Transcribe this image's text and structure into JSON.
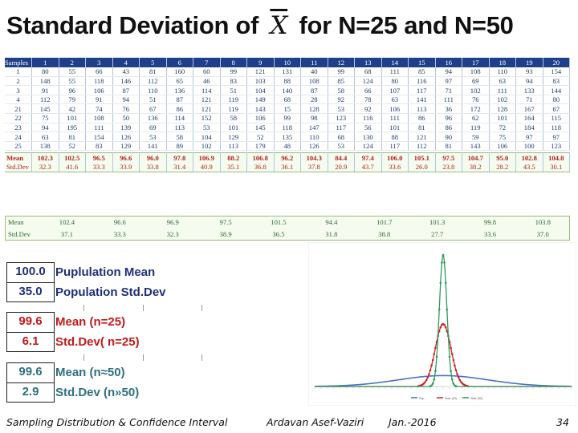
{
  "title": {
    "prefix": "Standard Deviation of ",
    "symbol": "X",
    "suffix": " for N=25 and N=50"
  },
  "samples_table": {
    "header": [
      "Samples",
      "1",
      "2",
      "3",
      "4",
      "5",
      "6",
      "7",
      "8",
      "9",
      "10",
      "11",
      "12",
      "13",
      "14",
      "15",
      "16",
      "17",
      "18",
      "19",
      "20"
    ],
    "rows": [
      [
        "1",
        "80",
        "55",
        "66",
        "43",
        "81",
        "160",
        "60",
        "99",
        "121",
        "131",
        "40",
        "99",
        "68",
        "111",
        "85",
        "94",
        "108",
        "110",
        "93",
        "154"
      ],
      [
        "2",
        "148",
        "55",
        "118",
        "146",
        "112",
        "65",
        "46",
        "83",
        "103",
        "88",
        "108",
        "85",
        "124",
        "80",
        "116",
        "97",
        "69",
        "63",
        "94",
        "83"
      ],
      [
        "3",
        "91",
        "96",
        "106",
        "87",
        "110",
        "136",
        "114",
        "51",
        "104",
        "140",
        "87",
        "58",
        "66",
        "107",
        "117",
        "71",
        "102",
        "111",
        "133",
        "144"
      ],
      [
        "4",
        "112",
        "79",
        "91",
        "94",
        "51",
        "87",
        "121",
        "119",
        "149",
        "68",
        "28",
        "92",
        "78",
        "63",
        "141",
        "111",
        "76",
        "102",
        "71",
        "80"
      ],
      [
        "21",
        "145",
        "42",
        "74",
        "76",
        "67",
        "86",
        "121",
        "119",
        "143",
        "15",
        "128",
        "53",
        "92",
        "106",
        "113",
        "36",
        "172",
        "128",
        "167",
        "67"
      ],
      [
        "22",
        "75",
        "101",
        "108",
        "50",
        "136",
        "114",
        "152",
        "58",
        "106",
        "99",
        "98",
        "123",
        "116",
        "111",
        "86",
        "96",
        "62",
        "101",
        "164",
        "115"
      ],
      [
        "23",
        "94",
        "195",
        "111",
        "139",
        "69",
        "113",
        "53",
        "101",
        "145",
        "118",
        "147",
        "117",
        "56",
        "101",
        "81",
        "86",
        "119",
        "72",
        "184",
        "118"
      ],
      [
        "24",
        "63",
        "81",
        "154",
        "126",
        "53",
        "58",
        "104",
        "129",
        "52",
        "135",
        "110",
        "68",
        "130",
        "88",
        "121",
        "90",
        "59",
        "75",
        "97",
        "97"
      ],
      [
        "25",
        "138",
        "52",
        "83",
        "129",
        "141",
        "89",
        "102",
        "113",
        "179",
        "48",
        "126",
        "53",
        "124",
        "117",
        "112",
        "81",
        "143",
        "106",
        "100",
        "123"
      ]
    ],
    "mean": [
      "Mean",
      "102.3",
      "102.5",
      "96.5",
      "96.6",
      "96.0",
      "97.8",
      "106.9",
      "88.2",
      "106.8",
      "96.2",
      "104.3",
      "84.4",
      "97.4",
      "106.0",
      "105.1",
      "97.5",
      "104.7",
      "95.0",
      "102.8",
      "104.8"
    ],
    "stddev": [
      "Std.Dev",
      "32.3",
      "41.6",
      "33.3",
      "33.9",
      "33.8",
      "31.4",
      "40.9",
      "35.1",
      "36.8",
      "36.1",
      "37.8",
      "20.9",
      "43.7",
      "33.6",
      "26.0",
      "23.8",
      "38.2",
      "28.2",
      "43.5",
      "30.1"
    ]
  },
  "n50_table": {
    "mean_label": "Mean",
    "mean_values": [
      "102.4",
      "96.6",
      "96.9",
      "97.5",
      "101.5",
      "94.4",
      "101.7",
      "101.3",
      "99.8",
      "103.8"
    ],
    "std_label": "Std.Dev",
    "std_values": [
      "37.1",
      "33.3",
      "32.3",
      "38.9",
      "36.5",
      "31.8",
      "38.8",
      "27.7",
      "33.6",
      "37.0"
    ]
  },
  "summary": {
    "population": {
      "mean": "100.0",
      "mean_label": "Puplulation Mean",
      "std": "35.0",
      "std_label": "Population Std.Dev"
    },
    "n25": {
      "mean": "99.6",
      "mean_label": "Mean (n=25)",
      "std": "6.1",
      "std_label": "Std.Dev( n=25)"
    },
    "n50": {
      "mean": "99.6",
      "mean_label": "Mean (n≈50)",
      "std": "2.9",
      "std_label": "Std.Dev (n»50)"
    }
  },
  "chart_data": {
    "type": "line",
    "series": [
      {
        "name": "Pop",
        "color": "#4a72c2",
        "mean": 100,
        "sd": 35
      },
      {
        "name": "Xbar (25)",
        "color": "#cc2222",
        "mean": 100,
        "sd": 6.1
      },
      {
        "name": "Xbar (50)",
        "color": "#2f9b5a",
        "mean": 100,
        "sd": 2.9
      }
    ],
    "xlim": [
      0,
      200
    ],
    "legend_position": "bottom"
  },
  "footer": {
    "course": "Sampling Distribution & Confidence Interval",
    "author": "Ardavan Asef-Vaziri",
    "date": "Jan.-2016",
    "page": "34"
  },
  "colors": {
    "navy": "#1e3f8a",
    "red": "#c21a1a",
    "green": "#2f9b5a"
  }
}
